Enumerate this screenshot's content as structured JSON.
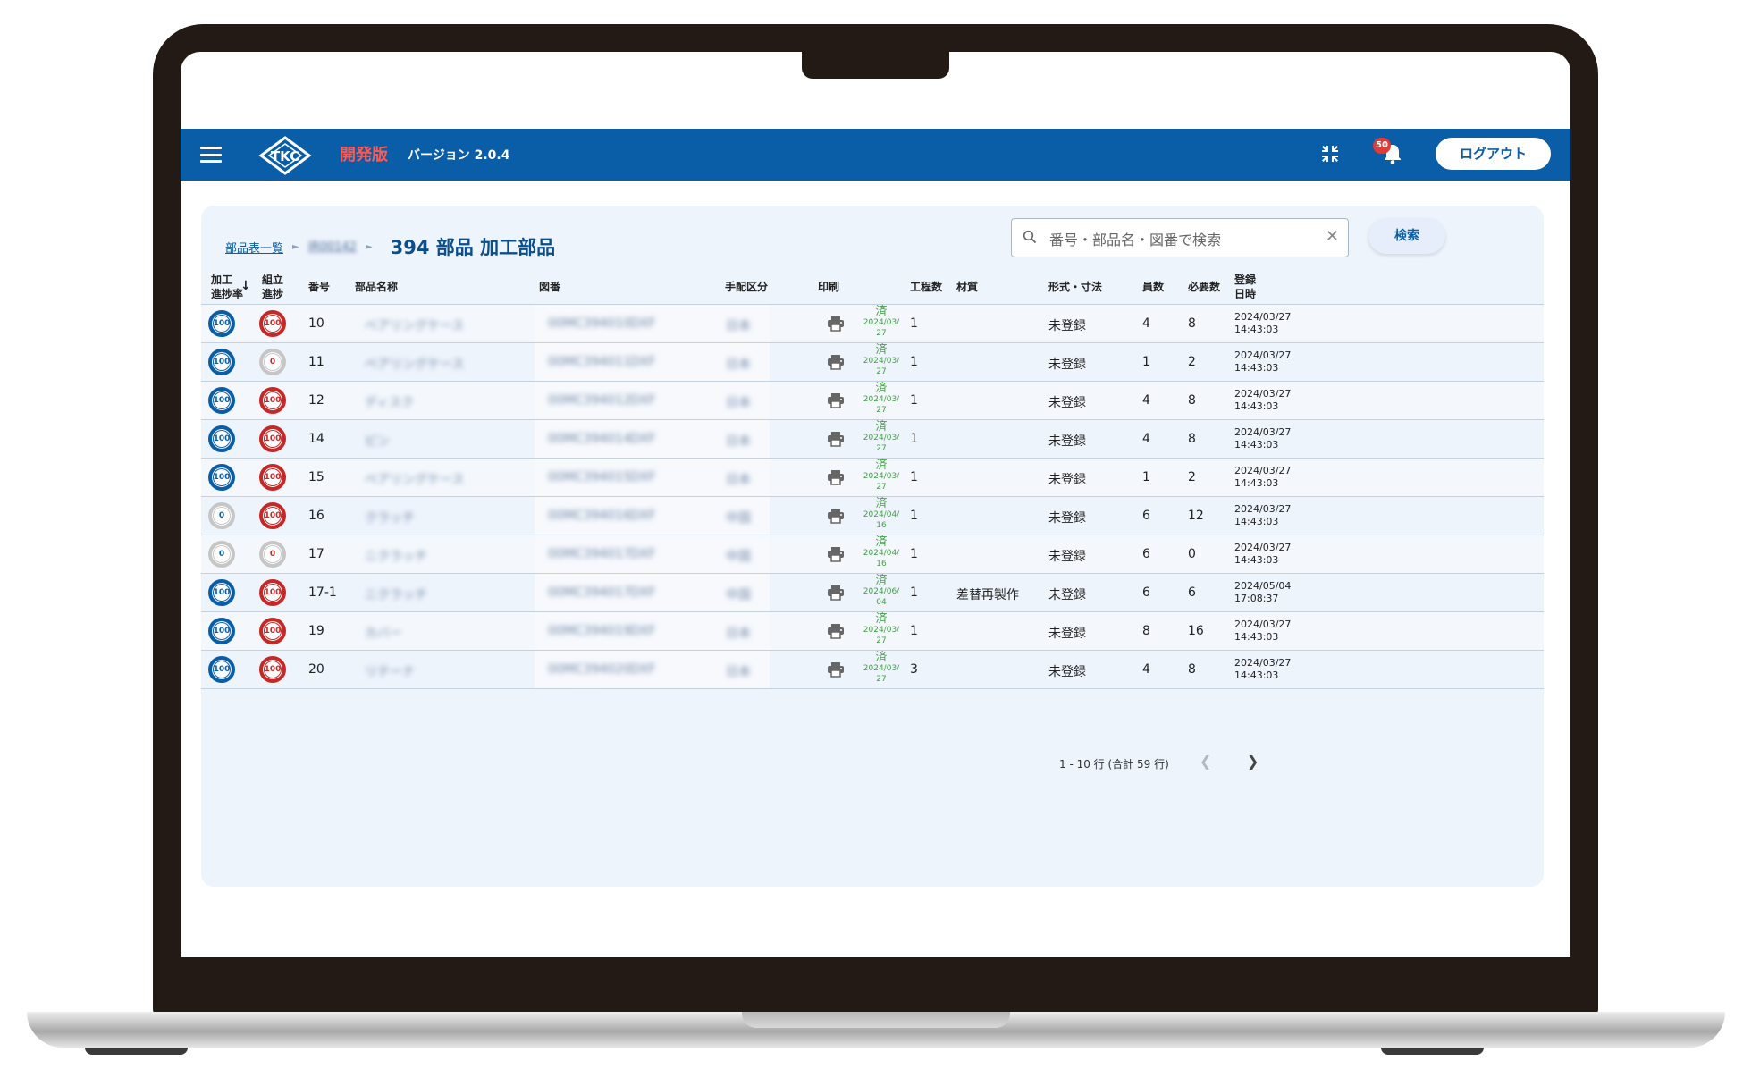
{
  "header": {
    "dev_label": "開発版",
    "version": "バージョン 2.0.4",
    "notification_count": "50",
    "logout_label": "ログアウト",
    "logo_text": "TKC"
  },
  "breadcrumb": {
    "parent": "部品表一覧",
    "middle": "IR00142",
    "title": "394 部品 加工部品"
  },
  "search": {
    "placeholder": "番号・部品名・図番で検索",
    "button_label": "検索"
  },
  "table": {
    "headers": {
      "processing_rate": "加工\n進捗率",
      "assembly_rate": "組立\n進捗",
      "number": "番号",
      "part_name": "部品名称",
      "drawing_no": "図番",
      "arrangement": "手配区分",
      "print": "印刷",
      "process_count": "工程数",
      "material": "材質",
      "format_dim": "形式・寸法",
      "unit_count": "員数",
      "required_count": "必要数",
      "registered": "登録\n日時"
    },
    "rows": [
      {
        "proc": "100",
        "asm": "100",
        "no": "10",
        "name": "ベアリングケース",
        "drawing": "00MC394010",
        "dwg_ext": "DXF",
        "arrange": "日本",
        "status": "済",
        "date": "2024/03/27",
        "steps": "1",
        "material": "",
        "format": "未登録",
        "units": "4",
        "required": "8",
        "reg_date": "2024/03/27",
        "reg_time": "14:43:03"
      },
      {
        "proc": "100",
        "asm": "0",
        "no": "11",
        "name": "ベアリングケース",
        "drawing": "00MC394011",
        "dwg_ext": "DXF",
        "arrange": "日本",
        "status": "済",
        "date": "2024/03/27",
        "steps": "1",
        "material": "",
        "format": "未登録",
        "units": "1",
        "required": "2",
        "reg_date": "2024/03/27",
        "reg_time": "14:43:03"
      },
      {
        "proc": "100",
        "asm": "100",
        "no": "12",
        "name": "ディスク",
        "drawing": "00MC394012",
        "dwg_ext": "DXF",
        "arrange": "日本",
        "status": "済",
        "date": "2024/03/27",
        "steps": "1",
        "material": "",
        "format": "未登録",
        "units": "4",
        "required": "8",
        "reg_date": "2024/03/27",
        "reg_time": "14:43:03"
      },
      {
        "proc": "100",
        "asm": "100",
        "no": "14",
        "name": "ピン",
        "drawing": "00MC394014",
        "dwg_ext": "DXF",
        "arrange": "日本",
        "status": "済",
        "date": "2024/03/27",
        "steps": "1",
        "material": "",
        "format": "未登録",
        "units": "4",
        "required": "8",
        "reg_date": "2024/03/27",
        "reg_time": "14:43:03"
      },
      {
        "proc": "100",
        "asm": "100",
        "no": "15",
        "name": "ベアリングケース",
        "drawing": "00MC394015",
        "dwg_ext": "DXF",
        "arrange": "日本",
        "status": "済",
        "date": "2024/03/27",
        "steps": "1",
        "material": "",
        "format": "未登録",
        "units": "1",
        "required": "2",
        "reg_date": "2024/03/27",
        "reg_time": "14:43:03"
      },
      {
        "proc": "0",
        "asm": "100",
        "no": "16",
        "name": "クラッチ",
        "drawing": "00MC394016",
        "dwg_ext": "DXF",
        "arrange": "中国",
        "status": "済",
        "date": "2024/04/16",
        "steps": "1",
        "material": "",
        "format": "未登録",
        "units": "6",
        "required": "12",
        "reg_date": "2024/03/27",
        "reg_time": "14:43:03"
      },
      {
        "proc": "0",
        "asm": "0",
        "no": "17",
        "name": "ニクラッチ",
        "drawing": "00MC394017",
        "dwg_ext": "DXF",
        "arrange": "中国",
        "status": "済",
        "date": "2024/04/16",
        "steps": "1",
        "material": "",
        "format": "未登録",
        "units": "6",
        "required": "0",
        "reg_date": "2024/03/27",
        "reg_time": "14:43:03"
      },
      {
        "proc": "100",
        "asm": "100",
        "no": "17-1",
        "name": "ニクラッチ",
        "drawing": "00MC394017",
        "dwg_ext": "DXF",
        "arrange": "中国",
        "status": "済",
        "date": "2024/06/04",
        "steps": "1",
        "material": "差替再製作",
        "format": "未登録",
        "units": "6",
        "required": "6",
        "reg_date": "2024/05/04",
        "reg_time": "17:08:37"
      },
      {
        "proc": "100",
        "asm": "100",
        "no": "19",
        "name": "カバー",
        "drawing": "00MC394019",
        "dwg_ext": "DXF",
        "arrange": "日本",
        "status": "済",
        "date": "2024/03/27",
        "steps": "1",
        "material": "",
        "format": "未登録",
        "units": "8",
        "required": "16",
        "reg_date": "2024/03/27",
        "reg_time": "14:43:03"
      },
      {
        "proc": "100",
        "asm": "100",
        "no": "20",
        "name": "リテーナ",
        "drawing": "00MC394020",
        "dwg_ext": "DXF",
        "arrange": "日本",
        "status": "済",
        "date": "2024/03/27",
        "steps": "3",
        "material": "",
        "format": "未登録",
        "units": "4",
        "required": "8",
        "reg_date": "2024/03/27",
        "reg_time": "14:43:03"
      }
    ]
  },
  "pagination": {
    "summary": "1 - 10 行 (合計 59 行)",
    "prev_icon": "chevron-left-icon",
    "next_icon": "chevron-right-icon"
  },
  "colors": {
    "primary": "#0a5ea8",
    "progress_processing": "#0a5ea8",
    "progress_assembly": "#c62828",
    "progress_zero": "#c6c6c6",
    "done": "#43a047",
    "dev_label": "#ff5a52"
  }
}
